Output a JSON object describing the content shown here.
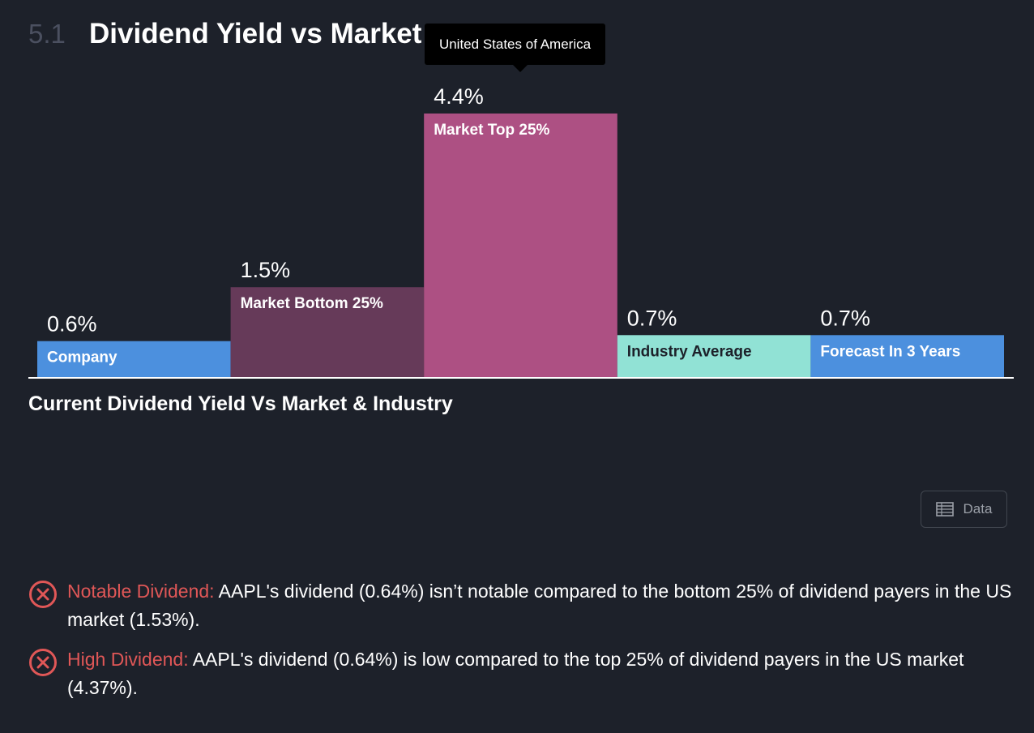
{
  "section": {
    "number": "5.1",
    "title": "Dividend Yield vs Market"
  },
  "tooltip": {
    "text": "United States of America"
  },
  "chart_data": {
    "type": "bar",
    "categories": [
      "Company",
      "Market Bottom 25%",
      "Market Top 25%",
      "Industry Average",
      "Forecast In 3 Years"
    ],
    "values": [
      0.6,
      1.5,
      4.4,
      0.7,
      0.7
    ],
    "value_labels": [
      "0.6%",
      "1.5%",
      "4.4%",
      "0.7%",
      "0.7%"
    ],
    "colors": [
      "#4c90de",
      "#663a59",
      "#ad5083",
      "#91e2d5",
      "#4c90de"
    ],
    "label_colors": [
      "#ffffff",
      "#ffffff",
      "#ffffff",
      "#1d212a",
      "#ffffff"
    ],
    "title": "",
    "xlabel": "",
    "ylabel": "",
    "ylim": [
      0,
      4.4
    ],
    "grid": false
  },
  "chart_subtitle": "Current Dividend Yield Vs Market & Industry",
  "data_button": {
    "label": "Data",
    "icon": "table-icon"
  },
  "checks": [
    {
      "icon": "x-circle-icon",
      "label": "Notable Dividend:",
      "text": " AAPL's dividend (0.64%) isn’t notable compared to the bottom 25% of dividend payers in the US market (1.53%)."
    },
    {
      "icon": "x-circle-icon",
      "label": "High Dividend:",
      "text": " AAPL's dividend (0.64%) is low compared to the top 25% of dividend payers in the US market (4.37%)."
    }
  ]
}
